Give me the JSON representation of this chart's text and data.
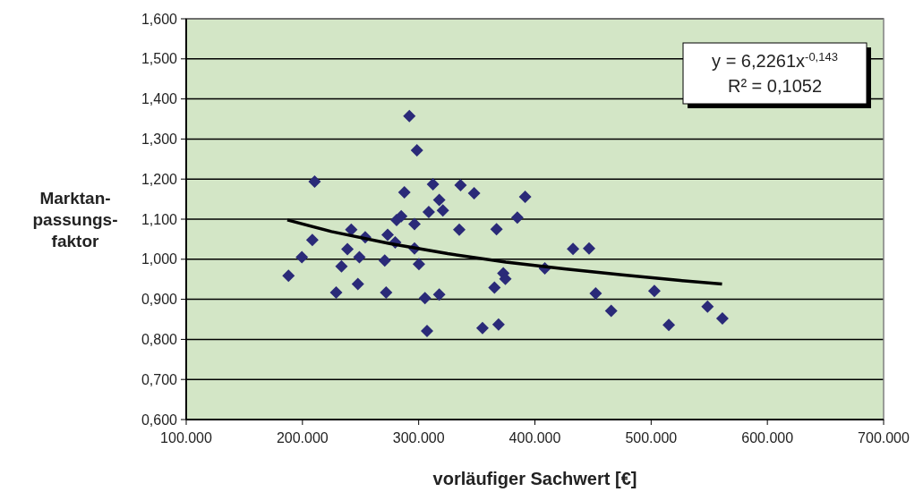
{
  "chart_data": {
    "type": "scatter",
    "xlabel": "vorläufiger Sachwert [€]",
    "ylabel": "Marktan-\npassungs-\nfaktor",
    "annotations": [
      "y = 6,2261x$^{-0,143}$",
      "R² = 0,1052"
    ],
    "xlim": [
      100000,
      700000
    ],
    "xticks": [
      {
        "value": 100000,
        "label": "100.000"
      },
      {
        "value": 200000,
        "label": "200.000"
      },
      {
        "value": 300000,
        "label": "300.000"
      },
      {
        "value": 400000,
        "label": "400.000"
      },
      {
        "value": 500000,
        "label": "500.000"
      },
      {
        "value": 600000,
        "label": "600.000"
      },
      {
        "value": 700000,
        "label": "700.000"
      }
    ],
    "ylim": [
      0.6,
      1.6
    ],
    "yticks": [
      {
        "value": 0.6,
        "label": "0,600"
      },
      {
        "value": 0.7,
        "label": "0,700"
      },
      {
        "value": 0.8,
        "label": "0,800"
      },
      {
        "value": 0.9,
        "label": "0,900"
      },
      {
        "value": 1.0,
        "label": "1,000"
      },
      {
        "value": 1.1,
        "label": "1,100"
      },
      {
        "value": 1.2,
        "label": "1,200"
      },
      {
        "value": 1.3,
        "label": "1,300"
      },
      {
        "value": 1.4,
        "label": "1,400"
      },
      {
        "value": 1.5,
        "label": "1,500"
      },
      {
        "value": 1.6,
        "label": "1,600"
      }
    ],
    "grid": "y",
    "series": [
      {
        "color": "#2a2a78",
        "marker": "diamond",
        "x": [
          188000,
          199500,
          208500,
          210500,
          229000,
          233600,
          238700,
          242000,
          247700,
          249000,
          254000,
          270800,
          272000,
          273300,
          279800,
          281000,
          285000,
          287700,
          292000,
          296400,
          296400,
          298500,
          300200,
          305400,
          307200,
          308700,
          312300,
          317700,
          317700,
          320800,
          334900,
          336000,
          347700,
          354900,
          365200,
          367000,
          368700,
          372800,
          374600,
          384900,
          391600,
          408500,
          432800,
          446600,
          452300,
          465600,
          502800,
          515200,
          548500,
          561300
        ],
        "values": [
          0.959,
          1.005,
          1.048,
          1.194,
          0.917,
          0.982,
          1.025,
          1.074,
          0.938,
          1.005,
          1.055,
          0.997,
          0.917,
          1.061,
          1.042,
          1.098,
          1.107,
          1.167,
          1.357,
          1.088,
          1.027,
          1.272,
          0.988,
          0.903,
          0.821,
          1.118,
          1.187,
          0.912,
          1.148,
          1.122,
          1.074,
          1.185,
          1.165,
          0.828,
          0.929,
          1.075,
          0.837,
          0.965,
          0.951,
          1.104,
          1.156,
          0.977,
          1.026,
          1.027,
          0.915,
          0.871,
          0.921,
          0.836,
          0.882,
          0.852
        ]
      },
      {
        "type": "line",
        "color": "#000000",
        "marker": "none",
        "line_style": "solid",
        "x": [
          187000,
          225000,
          275000,
          325000,
          375000,
          425000,
          475000,
          525000,
          561000
        ],
        "values": [
          1.098,
          1.069,
          1.039,
          1.014,
          0.993,
          0.976,
          0.961,
          0.947,
          0.938
        ]
      }
    ]
  }
}
